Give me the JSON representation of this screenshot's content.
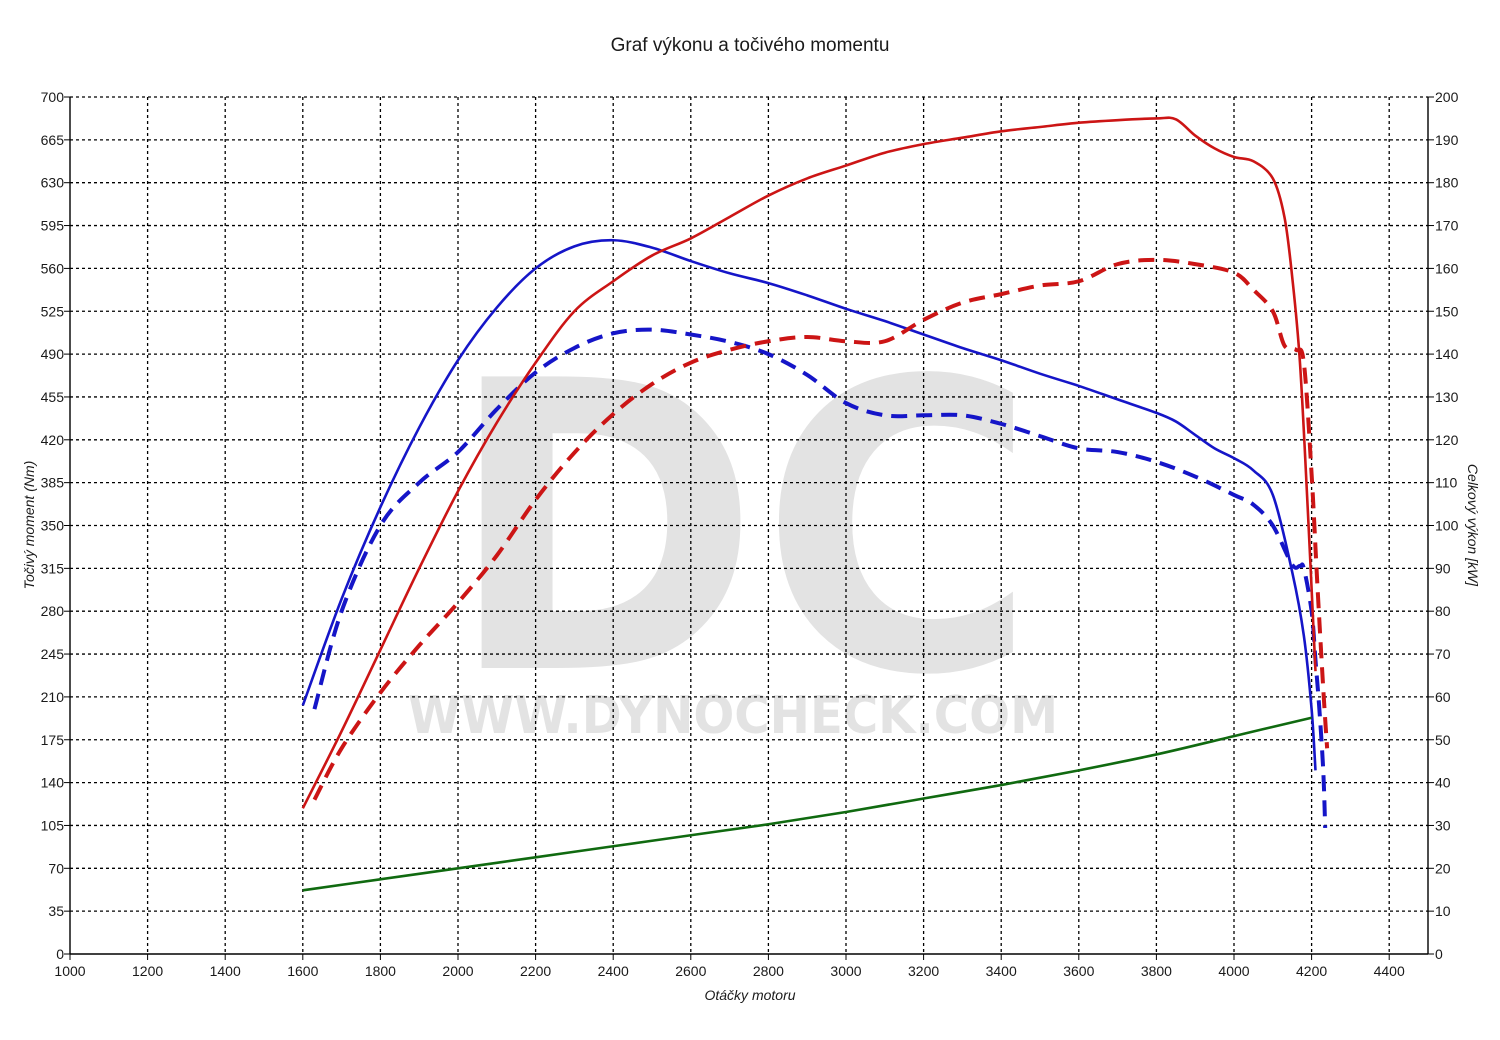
{
  "chart_data": {
    "type": "line",
    "title": "Graf výkonu a točivého momentu",
    "xlabel": "Otáčky motoru",
    "ylabel_left": "Točivý moment (Nm)",
    "ylabel_right": "Celkový výkon [kW]",
    "watermark": {
      "logo": "DC",
      "url": "WWW.DYNOCHECK.COM"
    },
    "xlim": [
      1000,
      4500
    ],
    "ylim_left": [
      0,
      700
    ],
    "ylim_right": [
      0,
      200
    ],
    "grid": true,
    "xticks": [
      "1000",
      "1200",
      "1400",
      "1600",
      "1800",
      "2000",
      "2200",
      "2400",
      "2600",
      "2800",
      "3000",
      "3200",
      "3400",
      "3600",
      "3800",
      "4000",
      "4200",
      "4400"
    ],
    "yticks_left": [
      "0",
      "35",
      "70",
      "105",
      "140",
      "175",
      "210",
      "245",
      "280",
      "315",
      "350",
      "385",
      "420",
      "455",
      "490",
      "525",
      "560",
      "595",
      "630",
      "665",
      "700"
    ],
    "yticks_right": [
      "0",
      "10",
      "20",
      "30",
      "40",
      "50",
      "60",
      "70",
      "80",
      "90",
      "100",
      "110",
      "120",
      "130",
      "140",
      "150",
      "160",
      "170",
      "180",
      "190",
      "200"
    ],
    "series": [
      {
        "axis": "left",
        "color": "#1515c8",
        "style": "solid",
        "x": [
          1600,
          1700,
          1800,
          1900,
          2000,
          2100,
          2200,
          2300,
          2400,
          2500,
          2600,
          2700,
          2800,
          2900,
          3000,
          3100,
          3200,
          3300,
          3400,
          3500,
          3600,
          3700,
          3800,
          3850,
          3900,
          3950,
          4000,
          4050,
          4100,
          4150,
          4180,
          4200,
          4210
        ],
        "y": [
          203,
          290,
          365,
          430,
          485,
          528,
          560,
          578,
          583,
          577,
          566,
          556,
          548,
          538,
          527,
          517,
          506,
          495,
          485,
          474,
          464,
          453,
          442,
          435,
          424,
          413,
          405,
          395,
          375,
          312,
          260,
          200,
          150
        ]
      },
      {
        "axis": "left",
        "color": "#1515c8",
        "style": "dashed",
        "x": [
          1630,
          1700,
          1800,
          1900,
          2000,
          2100,
          2200,
          2300,
          2400,
          2500,
          2600,
          2700,
          2800,
          2900,
          3000,
          3100,
          3200,
          3300,
          3400,
          3500,
          3600,
          3700,
          3800,
          3900,
          4000,
          4050,
          4100,
          4150,
          4170,
          4180,
          4200,
          4210,
          4220,
          4230,
          4235
        ],
        "y": [
          200,
          280,
          350,
          385,
          410,
          445,
          475,
          495,
          507,
          510,
          506,
          500,
          490,
          473,
          450,
          440,
          440,
          440,
          433,
          423,
          413,
          410,
          402,
          390,
          375,
          367,
          350,
          318,
          317,
          315,
          280,
          240,
          200,
          150,
          103
        ]
      },
      {
        "axis": "right",
        "color": "#cc1515",
        "style": "solid",
        "x": [
          1600,
          1700,
          1800,
          1900,
          2000,
          2100,
          2200,
          2300,
          2400,
          2500,
          2600,
          2700,
          2800,
          2900,
          3000,
          3100,
          3200,
          3300,
          3400,
          3500,
          3600,
          3700,
          3800,
          3850,
          3900,
          3950,
          4000,
          4050,
          4100,
          4130,
          4150,
          4170,
          4190,
          4210
        ],
        "y": [
          34,
          52,
          71,
          90,
          108,
          124,
          138,
          150,
          157,
          163,
          167,
          172,
          177,
          181,
          184,
          187,
          189,
          190.5,
          192,
          193,
          194,
          194.6,
          195,
          194.8,
          191,
          188,
          186,
          185,
          181,
          172,
          158,
          138,
          104,
          66
        ]
      },
      {
        "axis": "right",
        "color": "#cc1515",
        "style": "dashed",
        "x": [
          1630,
          1700,
          1800,
          1900,
          2000,
          2100,
          2200,
          2300,
          2400,
          2500,
          2600,
          2700,
          2800,
          2900,
          3000,
          3100,
          3200,
          3300,
          3400,
          3500,
          3600,
          3700,
          3800,
          3900,
          4000,
          4050,
          4100,
          4130,
          4160,
          4180,
          4200,
          4215,
          4230,
          4240
        ],
        "y": [
          36,
          48,
          61,
          72,
          82,
          93,
          106,
          117,
          126,
          133,
          138,
          141,
          143,
          144,
          143,
          143,
          148,
          152,
          154,
          156,
          157,
          161,
          162,
          161,
          159,
          155,
          150,
          142,
          141,
          138,
          112,
          86,
          62,
          48
        ]
      },
      {
        "axis": "left",
        "color": "#106a10",
        "style": "solid",
        "x": [
          1600,
          1800,
          2000,
          2200,
          2400,
          2600,
          2800,
          3000,
          3200,
          3400,
          3600,
          3800,
          4000,
          4200
        ],
        "y": [
          52,
          61,
          70,
          79,
          88,
          97,
          106,
          116,
          127,
          138,
          150,
          163,
          178,
          193
        ]
      }
    ]
  }
}
